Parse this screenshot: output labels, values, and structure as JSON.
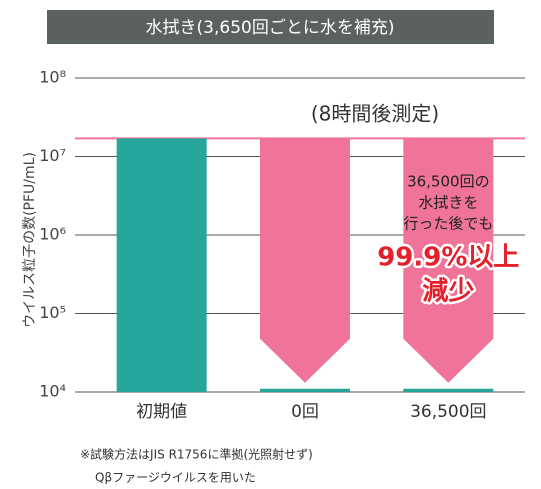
{
  "chart_data": {
    "type": "bar",
    "title": "水拭き(3,650回ごとに水を補充)",
    "ylabel": "ウイルス粒子の数(PFU/mL)",
    "categories": [
      "初期値",
      "0回",
      "36,500回"
    ],
    "values": [
      17000000,
      11000,
      11000
    ],
    "color": "#26a69a",
    "arrow_color": "#f07399",
    "log_scale": true,
    "ylim": [
      10000,
      100000000
    ],
    "yticks": [
      {
        "value": 10000,
        "label": "10⁴"
      },
      {
        "value": 100000,
        "label": "10⁵"
      },
      {
        "value": 1000000,
        "label": "10⁶"
      },
      {
        "value": 10000000,
        "label": "10⁷"
      },
      {
        "value": 100000000,
        "label": "10⁸"
      }
    ],
    "grid": true,
    "annotations": [
      "(8時間後測定)",
      "36,500回の",
      "水拭きを",
      "行った後でも",
      "99.9%以上",
      "減少"
    ],
    "footnotes": [
      "※試験方法はJIS R1756に準拠(光照射せず)",
      "Qβファージウイルスを用いた"
    ]
  }
}
